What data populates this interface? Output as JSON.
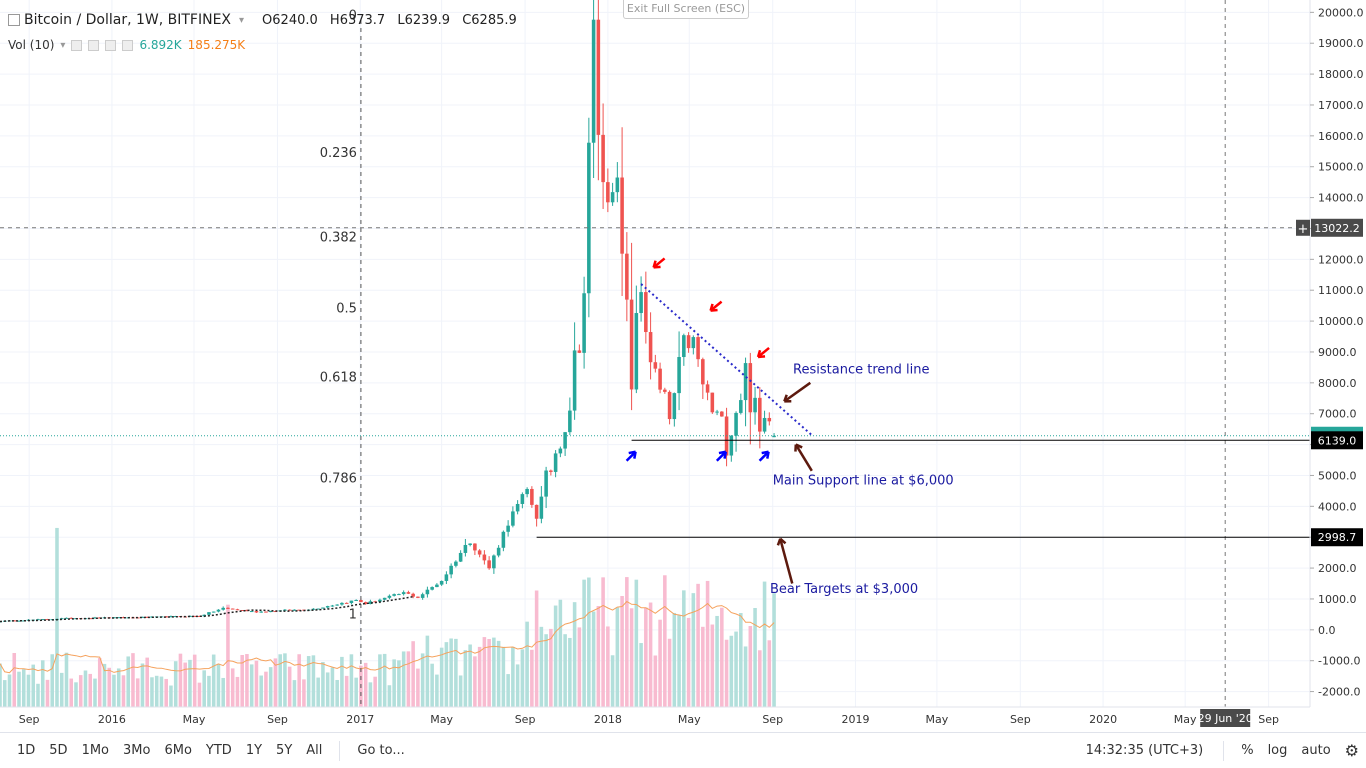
{
  "header": {
    "title": "Bitcoin / Dollar, 1W, BITFINEX",
    "open": "O6240.0",
    "high": "H6373.7",
    "low": "L6239.9",
    "close": "C6285.9"
  },
  "volume": {
    "label": "Vol (10)",
    "value1": "6.892K",
    "value2": "185.275K"
  },
  "exit_fullscreen": "Exit Full Screen (ESC)",
  "toolbar": {
    "ranges": [
      "1D",
      "5D",
      "1Mo",
      "3Mo",
      "6Mo",
      "YTD",
      "1Y",
      "5Y",
      "All"
    ],
    "goto": "Go to...",
    "clock": "14:32:35 (UTC+3)",
    "percent": "%",
    "log": "log",
    "auto": "auto"
  },
  "colors": {
    "up": "#26a69a",
    "down": "#ef5350",
    "vol_up": "#b2dfdb",
    "vol_down": "#f8bbd0",
    "ma": "#f5a25d",
    "fib": "#333333",
    "annotation": "#1a1aa0",
    "trend": "#2a2aca",
    "red_arrow": "#ff0000",
    "blue_arrow": "#0000ff",
    "brown_arrow": "#5d1a0e"
  },
  "chart_data": {
    "type": "candlestick",
    "price_axis": {
      "ticks": [
        "20000.0",
        "19000.0",
        "18000.0",
        "17000.0",
        "16000.0",
        "15000.0",
        "14000.0",
        "13000.0",
        "12000.0",
        "11000.0",
        "10000.0",
        "9000.0",
        "8000.0",
        "7000.0",
        "6000.0",
        "5000.0",
        "4000.0",
        "3000.0",
        "2000.0",
        "1000.0",
        "0.0",
        "-1000.0",
        "-2000.0"
      ],
      "tick_values": [
        20000,
        19000,
        18000,
        17000,
        16000,
        15000,
        14000,
        13000,
        12000,
        11000,
        10000,
        9000,
        8000,
        7000,
        6000,
        5000,
        4000,
        3000,
        2000,
        1000,
        0,
        -1000,
        -2000
      ],
      "range": [
        -2500,
        20400
      ]
    },
    "time_axis": {
      "ticks": [
        "Sep",
        "2016",
        "May",
        "Sep",
        "2017",
        "May",
        "Sep",
        "2018",
        "May",
        "Sep",
        "2019",
        "May",
        "Sep",
        "2020",
        "May",
        "Sep"
      ],
      "tick_dates": [
        "2015-09-01",
        "2016-01-01",
        "2016-05-01",
        "2016-09-01",
        "2017-01-01",
        "2017-05-01",
        "2017-09-01",
        "2018-01-01",
        "2018-05-01",
        "2018-09-01",
        "2019-01-01",
        "2019-05-01",
        "2019-09-01",
        "2020-01-01",
        "2020-05-01",
        "2020-09-01"
      ],
      "crosshair_date_label": "29 Jun '20",
      "crosshair_date": "2020-06-29",
      "range": [
        "2015-07-20",
        "2020-11-01"
      ]
    },
    "price_labels": [
      {
        "text": "13022.2",
        "value": 13022.2,
        "style": "crosshair"
      },
      {
        "text": "6285.9",
        "value": 6285.9,
        "style": "last"
      },
      {
        "text": "6139.0",
        "value": 6139.0,
        "style": "line"
      },
      {
        "text": "2998.7",
        "value": 2998.7,
        "style": "line"
      }
    ],
    "fib_levels": [
      {
        "label": "0",
        "value": 19900
      },
      {
        "label": "0.236",
        "value": 15450
      },
      {
        "label": "0.382",
        "value": 12700
      },
      {
        "label": "0.5",
        "value": 10400
      },
      {
        "label": "0.618",
        "value": 8180
      },
      {
        "label": "0.786",
        "value": 4900
      },
      {
        "label": "1",
        "value": 500
      }
    ],
    "annotations": [
      {
        "text": "Resistance trend line",
        "date": "2018-10-01",
        "value": 8300
      },
      {
        "text": "Main Support line at $6,000",
        "date": "2018-09-01",
        "value": 4700
      },
      {
        "text": "Bear Targets at $3,000",
        "date": "2018-08-28",
        "value": 1200
      }
    ],
    "trend_line": {
      "from": {
        "date": "2018-02-19",
        "value": 11200
      },
      "to": {
        "date": "2018-10-29",
        "value": 6300
      }
    },
    "support_line": {
      "from": {
        "date": "2018-02-05",
        "value": 6139
      },
      "to": "right_edge",
      "value": 6139
    },
    "bear_line": {
      "from": {
        "date": "2017-09-18",
        "value": 2998.7
      },
      "to": "right_edge",
      "value": 2998.7
    },
    "anchors": [
      {
        "date": "2015-07-20",
        "price": 280
      },
      {
        "date": "2015-11-02",
        "price": 380
      },
      {
        "date": "2016-02-01",
        "price": 400
      },
      {
        "date": "2016-05-09",
        "price": 450
      },
      {
        "date": "2016-06-13",
        "price": 700
      },
      {
        "date": "2016-08-01",
        "price": 580
      },
      {
        "date": "2016-10-24",
        "price": 680
      },
      {
        "date": "2016-12-26",
        "price": 960
      },
      {
        "date": "2017-01-09",
        "price": 850
      },
      {
        "date": "2017-03-06",
        "price": 1200
      },
      {
        "date": "2017-03-27",
        "price": 1050
      },
      {
        "date": "2017-05-01",
        "price": 1600
      },
      {
        "date": "2017-05-29",
        "price": 2500
      },
      {
        "date": "2017-06-12",
        "price": 2900
      },
      {
        "date": "2017-07-10",
        "price": 2000
      },
      {
        "date": "2017-08-07",
        "price": 3500
      },
      {
        "date": "2017-09-04",
        "price": 4500
      },
      {
        "date": "2017-09-18",
        "price": 3700
      },
      {
        "date": "2017-10-16",
        "price": 5800
      },
      {
        "date": "2017-11-06",
        "price": 7400
      },
      {
        "date": "2017-11-27",
        "price": 11000
      },
      {
        "date": "2017-12-11",
        "price": 19000
      },
      {
        "date": "2017-12-25",
        "price": 14000
      },
      {
        "date": "2018-01-08",
        "price": 15500
      },
      {
        "date": "2018-01-29",
        "price": 10000
      },
      {
        "date": "2018-02-05",
        "price": 8200
      },
      {
        "date": "2018-02-19",
        "price": 11000
      },
      {
        "date": "2018-03-12",
        "price": 8000
      },
      {
        "date": "2018-04-02",
        "price": 6800
      },
      {
        "date": "2018-04-30",
        "price": 9600
      },
      {
        "date": "2018-05-28",
        "price": 7400
      },
      {
        "date": "2018-06-25",
        "price": 6200
      },
      {
        "date": "2018-07-23",
        "price": 8300
      },
      {
        "date": "2018-08-13",
        "price": 6300
      },
      {
        "date": "2018-08-27",
        "price": 7300
      },
      {
        "date": "2018-09-03",
        "price": 6285.9
      }
    ]
  }
}
